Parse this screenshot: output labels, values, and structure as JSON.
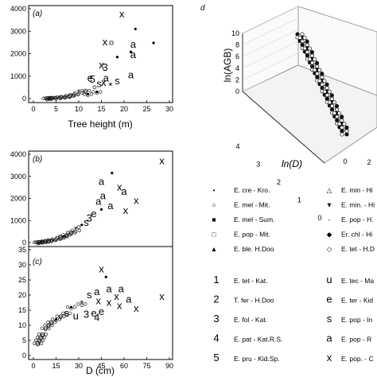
{
  "panels": {
    "a": "(a)",
    "b": "(b)",
    "c": "(c)",
    "d": "d"
  },
  "chart_data": [
    {
      "panel": "(a)",
      "type": "scatter",
      "xlabel": "Tree height (m)",
      "ylabel": "",
      "xlim": [
        0,
        30
      ],
      "ylim": [
        0,
        4000
      ],
      "xticks": [
        "0",
        "5",
        "10",
        "15",
        "20",
        "25",
        "30"
      ],
      "yticks": [
        "0",
        "1000",
        "2000",
        "3000",
        "4000"
      ],
      "points": [
        {
          "x": 19.5,
          "y": 3750,
          "m": "x"
        },
        {
          "x": 22.5,
          "y": 3100,
          "m": "•"
        },
        {
          "x": 26.5,
          "y": 2480,
          "m": "•"
        },
        {
          "x": 15.8,
          "y": 2520,
          "m": "x"
        },
        {
          "x": 17.2,
          "y": 2480,
          "m": "□"
        },
        {
          "x": 22.0,
          "y": 2400,
          "m": "a"
        },
        {
          "x": 21.5,
          "y": 2080,
          "m": "•"
        },
        {
          "x": 22.0,
          "y": 1950,
          "m": "a"
        },
        {
          "x": 18.5,
          "y": 1850,
          "m": "•"
        },
        {
          "x": 15.0,
          "y": 1480,
          "m": "x"
        },
        {
          "x": 15.8,
          "y": 1380,
          "m": "3"
        },
        {
          "x": 12.5,
          "y": 900,
          "m": "e"
        },
        {
          "x": 13.0,
          "y": 850,
          "m": "5"
        },
        {
          "x": 18.5,
          "y": 780,
          "m": "s"
        },
        {
          "x": 21.5,
          "y": 1050,
          "m": "a"
        },
        {
          "x": 16.0,
          "y": 900,
          "m": "a"
        },
        {
          "x": 15.5,
          "y": 700,
          "m": "x"
        },
        {
          "x": 14.5,
          "y": 650,
          "m": "s"
        },
        {
          "x": 17.0,
          "y": 550,
          "m": "*"
        },
        {
          "x": 13.5,
          "y": 500,
          "m": "o"
        },
        {
          "x": 11.5,
          "y": 350,
          "m": "o"
        },
        {
          "x": 10.0,
          "y": 250,
          "m": "*"
        },
        {
          "x": 9.0,
          "y": 180,
          "m": "o"
        },
        {
          "x": 8.0,
          "y": 120,
          "m": "□"
        },
        {
          "x": 7.0,
          "y": 80,
          "m": "o"
        },
        {
          "x": 6.0,
          "y": 60,
          "m": "□"
        },
        {
          "x": 5.0,
          "y": 40,
          "m": "o"
        },
        {
          "x": 4.0,
          "y": 30,
          "m": "□"
        },
        {
          "x": 3.5,
          "y": 20,
          "m": "o"
        },
        {
          "x": 3.0,
          "y": 10,
          "m": "□"
        },
        {
          "x": 12.0,
          "y": 200,
          "m": "•"
        },
        {
          "x": 14.0,
          "y": 300,
          "m": "•"
        }
      ]
    },
    {
      "panel": "(b)",
      "type": "scatter",
      "xlabel": "",
      "ylabel": "",
      "xlim": [
        0,
        90
      ],
      "ylim": [
        0,
        4000
      ],
      "xticks": [],
      "yticks": [
        "0",
        "1000",
        "2000",
        "3000",
        "4000"
      ],
      "points": [
        {
          "x": 85,
          "y": 3700,
          "m": "x"
        },
        {
          "x": 52,
          "y": 3150,
          "m": "•"
        },
        {
          "x": 45,
          "y": 2750,
          "m": "a"
        },
        {
          "x": 57,
          "y": 2500,
          "m": "x"
        },
        {
          "x": 60,
          "y": 2300,
          "m": "a"
        },
        {
          "x": 46,
          "y": 2100,
          "m": "a"
        },
        {
          "x": 68,
          "y": 1900,
          "m": "x"
        },
        {
          "x": 43,
          "y": 1850,
          "m": "a"
        },
        {
          "x": 51,
          "y": 1650,
          "m": "a"
        },
        {
          "x": 61,
          "y": 1450,
          "m": "x"
        },
        {
          "x": 45,
          "y": 1500,
          "m": "•"
        },
        {
          "x": 40,
          "y": 1300,
          "m": "e"
        },
        {
          "x": 37,
          "y": 1100,
          "m": "3"
        },
        {
          "x": 35,
          "y": 900,
          "m": "s"
        },
        {
          "x": 32,
          "y": 800,
          "m": "•"
        },
        {
          "x": 30,
          "y": 700,
          "m": "o"
        },
        {
          "x": 28,
          "y": 550,
          "m": "*"
        },
        {
          "x": 25,
          "y": 450,
          "m": "□"
        },
        {
          "x": 22,
          "y": 350,
          "m": "o"
        },
        {
          "x": 20,
          "y": 280,
          "m": "•"
        },
        {
          "x": 18,
          "y": 220,
          "m": "□"
        },
        {
          "x": 15,
          "y": 160,
          "m": "o"
        },
        {
          "x": 12,
          "y": 110,
          "m": "o"
        },
        {
          "x": 10,
          "y": 80,
          "m": "□"
        },
        {
          "x": 8,
          "y": 60,
          "m": "o"
        },
        {
          "x": 6,
          "y": 40,
          "m": "o"
        },
        {
          "x": 4,
          "y": 20,
          "m": "□"
        },
        {
          "x": 3,
          "y": 10,
          "m": "o"
        }
      ]
    },
    {
      "panel": "(c)",
      "type": "scatter",
      "xlabel": "D (cm)",
      "ylabel": "",
      "xlim": [
        0,
        90
      ],
      "ylim": [
        0,
        35
      ],
      "xticks": [
        "0",
        "15",
        "30",
        "45",
        "60",
        "75",
        "90"
      ],
      "yticks": [
        "0",
        "5",
        "10",
        "15",
        "20",
        "25",
        "30",
        "35"
      ],
      "points": [
        {
          "x": 45,
          "y": 28.5,
          "m": "x"
        },
        {
          "x": 48,
          "y": 26,
          "m": "•"
        },
        {
          "x": 50,
          "y": 22,
          "m": "a"
        },
        {
          "x": 58,
          "y": 22,
          "m": "a"
        },
        {
          "x": 42,
          "y": 21,
          "m": "a"
        },
        {
          "x": 85,
          "y": 19.5,
          "m": "x"
        },
        {
          "x": 55,
          "y": 19.5,
          "m": "x"
        },
        {
          "x": 63,
          "y": 18.5,
          "m": "a"
        },
        {
          "x": 37,
          "y": 20,
          "m": "s"
        },
        {
          "x": 43,
          "y": 18,
          "m": "x"
        },
        {
          "x": 50,
          "y": 17.5,
          "m": "x"
        },
        {
          "x": 57,
          "y": 16.5,
          "m": "x"
        },
        {
          "x": 68,
          "y": 15.5,
          "m": "x"
        },
        {
          "x": 45,
          "y": 14.5,
          "m": "e"
        },
        {
          "x": 40,
          "y": 14,
          "m": "e"
        },
        {
          "x": 35,
          "y": 13.5,
          "m": "3"
        },
        {
          "x": 42,
          "y": 12.5,
          "m": "4"
        },
        {
          "x": 28,
          "y": 13,
          "m": "u"
        },
        {
          "x": 22,
          "y": 14,
          "m": "s"
        },
        {
          "x": 18,
          "y": 13,
          "m": "o"
        },
        {
          "x": 15,
          "y": 12,
          "m": "•"
        },
        {
          "x": 12,
          "y": 11,
          "m": "□"
        },
        {
          "x": 10,
          "y": 10,
          "m": "o"
        },
        {
          "x": 8,
          "y": 9,
          "m": "o"
        },
        {
          "x": 6,
          "y": 7,
          "m": "□"
        },
        {
          "x": 5,
          "y": 6,
          "m": "o"
        },
        {
          "x": 4,
          "y": 5,
          "m": "o"
        },
        {
          "x": 3,
          "y": 4,
          "m": "□"
        },
        {
          "x": 25,
          "y": 16,
          "m": "•"
        },
        {
          "x": 32,
          "y": 17,
          "m": "*"
        }
      ]
    },
    {
      "panel": "d",
      "type": "scatter",
      "xlabel": "ln(D)",
      "ylabel": "ln(AGB)",
      "zlim": [
        0,
        10
      ],
      "xlim_lnD": [
        0,
        4
      ],
      "zticks": [
        "0",
        "2",
        "4",
        "6",
        "8",
        "10"
      ],
      "lnD_ticks": [
        "4",
        "3",
        "2",
        "1",
        "0"
      ],
      "ln_ticks_right": [
        "0",
        "2"
      ],
      "points": [
        {
          "lnD": 4.4,
          "lnAGB": 8.2
        },
        {
          "lnD": 4.3,
          "lnAGB": 7.9
        },
        {
          "lnD": 4.2,
          "lnAGB": 7.6
        },
        {
          "lnD": 4.1,
          "lnAGB": 7.3
        },
        {
          "lnD": 4.0,
          "lnAGB": 7.0
        },
        {
          "lnD": 3.9,
          "lnAGB": 6.7
        },
        {
          "lnD": 3.8,
          "lnAGB": 6.4
        },
        {
          "lnD": 3.7,
          "lnAGB": 6.1
        },
        {
          "lnD": 3.6,
          "lnAGB": 5.8
        },
        {
          "lnD": 3.5,
          "lnAGB": 5.5
        },
        {
          "lnD": 3.4,
          "lnAGB": 5.2
        },
        {
          "lnD": 3.3,
          "lnAGB": 4.9
        },
        {
          "lnD": 3.2,
          "lnAGB": 4.6
        },
        {
          "lnD": 3.1,
          "lnAGB": 4.4
        },
        {
          "lnD": 3.0,
          "lnAGB": 4.1
        },
        {
          "lnD": 2.9,
          "lnAGB": 3.8
        },
        {
          "lnD": 2.8,
          "lnAGB": 3.5
        },
        {
          "lnD": 2.7,
          "lnAGB": 3.3
        },
        {
          "lnD": 2.6,
          "lnAGB": 3.0
        },
        {
          "lnD": 2.5,
          "lnAGB": 2.8
        },
        {
          "lnD": 2.4,
          "lnAGB": 2.5
        },
        {
          "lnD": 2.3,
          "lnAGB": 2.3
        },
        {
          "lnD": 2.2,
          "lnAGB": 2.0
        },
        {
          "lnD": 2.1,
          "lnAGB": 1.8
        },
        {
          "lnD": 2.0,
          "lnAGB": 1.6
        },
        {
          "lnD": 1.9,
          "lnAGB": 1.4
        },
        {
          "lnD": 1.8,
          "lnAGB": 1.2
        },
        {
          "lnD": 1.7,
          "lnAGB": 1.0
        }
      ]
    }
  ],
  "legend": {
    "symbol_rows": [
      {
        "ls": "•",
        "lt": "E. cre - Kro.",
        "rs": "△",
        "rt": "E. min - Hi"
      },
      {
        "ls": "○",
        "lt": "E. mel - Mit.",
        "rs": "▼",
        "rt": "E. min. - Hi"
      },
      {
        "ls": "■",
        "lt": "E. mel - Sum.",
        "rs": "-",
        "rt": "E. pop - H."
      },
      {
        "ls": "□",
        "lt": "E. pop - Mit.",
        "rs": "◆",
        "rt": "Er. chl - Hi"
      },
      {
        "ls": "▲",
        "lt": "E. ble. H.Doo",
        "rs": "◇",
        "rt": "E. tet - H.D"
      }
    ],
    "char_rows": [
      {
        "ls": "1",
        "lt": "E. tet - Kat.",
        "rs": "u",
        "rt": "E. tec - Ma"
      },
      {
        "ls": "2",
        "lt": "T. fer - H.Doo",
        "rs": "e",
        "rt": "E. ter - Kid"
      },
      {
        "ls": "3",
        "lt": "E. fol - Kat.",
        "rs": "s",
        "rt": "E. pop - In"
      },
      {
        "ls": "4",
        "lt": "E. pat - Kat.R.S.",
        "rs": "a",
        "rt": "E. pop - R"
      },
      {
        "ls": "5",
        "lt": "E. pru - Kid.Sp.",
        "rs": "x",
        "rt": "E. pop. - C"
      }
    ]
  }
}
